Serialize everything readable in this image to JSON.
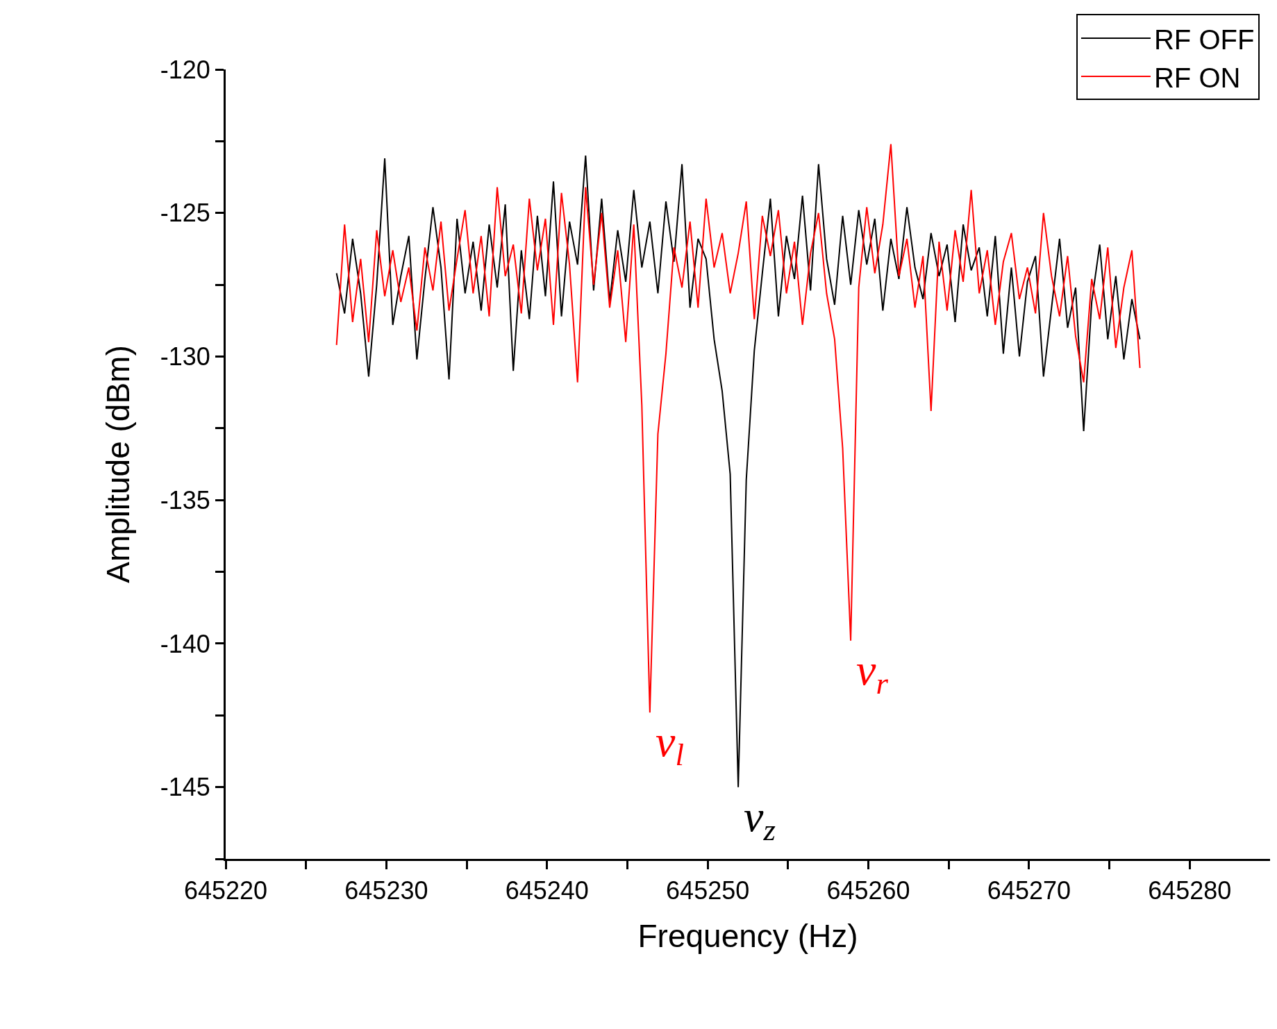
{
  "chart_data": {
    "type": "line",
    "xlabel": "Frequency (Hz)",
    "ylabel": "Amplitude (dBm)",
    "x": [
      645226.9,
      645227.4,
      645227.9,
      645228.4,
      645228.9,
      645229.4,
      645229.9,
      645230.4,
      645230.9,
      645231.4,
      645231.9,
      645232.4,
      645232.9,
      645233.4,
      645233.9,
      645234.4,
      645234.9,
      645235.4,
      645235.9,
      645236.4,
      645236.9,
      645237.4,
      645237.9,
      645238.4,
      645238.9,
      645239.4,
      645239.9,
      645240.4,
      645240.9,
      645241.4,
      645241.9,
      645242.4,
      645242.9,
      645243.4,
      645243.9,
      645244.4,
      645244.9,
      645245.4,
      645245.9,
      645246.4,
      645246.9,
      645247.4,
      645247.9,
      645248.4,
      645248.9,
      645249.4,
      645249.9,
      645250.4,
      645250.9,
      645251.4,
      645251.9,
      645252.4,
      645252.9,
      645253.4,
      645253.9,
      645254.4,
      645254.9,
      645255.4,
      645255.9,
      645256.4,
      645256.9,
      645257.4,
      645257.9,
      645258.4,
      645258.9,
      645259.4,
      645259.9,
      645260.4,
      645260.9,
      645261.4,
      645261.9,
      645262.4,
      645262.9,
      645263.4,
      645263.9,
      645264.4,
      645264.9,
      645265.4,
      645265.9,
      645266.4,
      645266.9,
      645267.4,
      645267.9,
      645268.4,
      645268.9,
      645269.4,
      645269.9,
      645270.4,
      645270.9,
      645271.4,
      645271.9,
      645272.4,
      645272.9,
      645273.4,
      645273.9,
      645274.4,
      645274.9,
      645275.4,
      645275.9,
      645276.4,
      645276.9
    ],
    "series": [
      {
        "name": "RF OFF",
        "color": "#000000",
        "values": [
          -127.1,
          -128.5,
          -125.9,
          -127.8,
          -130.7,
          -127.5,
          -123.1,
          -128.9,
          -127.2,
          -125.8,
          -130.1,
          -127.3,
          -124.8,
          -126.9,
          -130.8,
          -125.2,
          -127.8,
          -126.0,
          -128.4,
          -125.4,
          -127.6,
          -124.7,
          -130.5,
          -126.3,
          -128.7,
          -125.1,
          -127.9,
          -123.9,
          -128.6,
          -125.3,
          -126.8,
          -123.0,
          -127.7,
          -124.5,
          -128.1,
          -125.6,
          -127.4,
          -124.2,
          -126.9,
          -125.3,
          -127.8,
          -124.6,
          -126.7,
          -123.3,
          -128.3,
          -125.9,
          -126.6,
          -129.4,
          -131.2,
          -134.1,
          -145.0,
          -134.3,
          -129.8,
          -127.1,
          -124.5,
          -128.6,
          -125.8,
          -127.3,
          -124.4,
          -127.7,
          -123.3,
          -126.6,
          -128.2,
          -125.1,
          -127.5,
          -124.9,
          -126.8,
          -125.2,
          -128.4,
          -125.9,
          -127.3,
          -124.8,
          -126.9,
          -128.0,
          -125.7,
          -127.2,
          -126.1,
          -128.8,
          -125.4,
          -127.0,
          -126.2,
          -128.6,
          -125.8,
          -129.9,
          -126.9,
          -130.0,
          -127.4,
          -126.5,
          -130.7,
          -128.3,
          -125.9,
          -129.0,
          -127.6,
          -132.6,
          -128.1,
          -126.1,
          -129.4,
          -127.2,
          -130.1,
          -128.0,
          -129.4
        ]
      },
      {
        "name": "RF ON",
        "color": "#ff0000",
        "values": [
          -129.6,
          -125.4,
          -128.8,
          -126.6,
          -129.5,
          -125.6,
          -127.9,
          -126.3,
          -128.1,
          -126.9,
          -129.1,
          -126.2,
          -127.7,
          -125.3,
          -128.4,
          -126.6,
          -124.9,
          -127.8,
          -125.8,
          -128.6,
          -124.1,
          -127.2,
          -126.1,
          -128.5,
          -124.5,
          -127.0,
          -125.2,
          -128.9,
          -124.3,
          -126.8,
          -130.9,
          -124.1,
          -127.5,
          -125.0,
          -128.3,
          -126.3,
          -129.5,
          -125.4,
          -131.7,
          -142.4,
          -132.7,
          -129.9,
          -126.2,
          -127.6,
          -125.3,
          -128.3,
          -124.5,
          -126.9,
          -125.7,
          -127.8,
          -126.4,
          -124.6,
          -128.7,
          -125.1,
          -126.5,
          -124.9,
          -127.8,
          -126.0,
          -128.9,
          -126.4,
          -125.0,
          -127.8,
          -129.4,
          -133.2,
          -139.9,
          -127.6,
          -124.8,
          -127.1,
          -125.4,
          -122.6,
          -127.2,
          -125.9,
          -128.3,
          -126.5,
          -131.9,
          -126.0,
          -128.4,
          -125.6,
          -127.4,
          -124.2,
          -127.8,
          -126.3,
          -128.9,
          -126.7,
          -125.7,
          -128.0,
          -126.9,
          -128.5,
          -125.0,
          -127.2,
          -128.6,
          -126.5,
          -129.3,
          -130.9,
          -127.3,
          -128.7,
          -126.2,
          -129.7,
          -127.6,
          -126.3,
          -130.4
        ]
      }
    ],
    "annotations": [
      {
        "text": "ν$_{l}$",
        "x": 645246.4,
        "y": -142.4
      },
      {
        "text": "ν$_{z}$",
        "x": 645251.9,
        "y": -145.0
      },
      {
        "text": "ν$_{r}$",
        "x": 645258.9,
        "y": -139.9
      }
    ],
    "xlim": [
      645220,
      645285
    ],
    "xticks": [
      645220,
      {
        "value": 645225,
        "label": null
      },
      645230,
      {
        "value": 645235,
        "label": null
      },
      645240,
      {
        "value": 645245,
        "label": null
      },
      645250,
      {
        "value": 645255,
        "label": null
      },
      645260,
      {
        "value": 645265,
        "label": null
      },
      645270,
      {
        "value": 645275,
        "label": null
      },
      645280
    ],
    "ylim": [
      -147.5,
      -120
    ],
    "yticks": [
      -120,
      {
        "value": -122.5,
        "label": null
      },
      -125,
      {
        "value": -127.5,
        "label": null
      },
      -130,
      {
        "value": -132.5,
        "label": null
      },
      -135,
      {
        "value": -137.5,
        "label": null
      },
      -140,
      {
        "value": -142.5,
        "label": null
      },
      -145,
      {
        "value": -147.5,
        "label": null
      }
    ],
    "legend": "top right",
    "marker": "none",
    "line_style": "solid"
  }
}
